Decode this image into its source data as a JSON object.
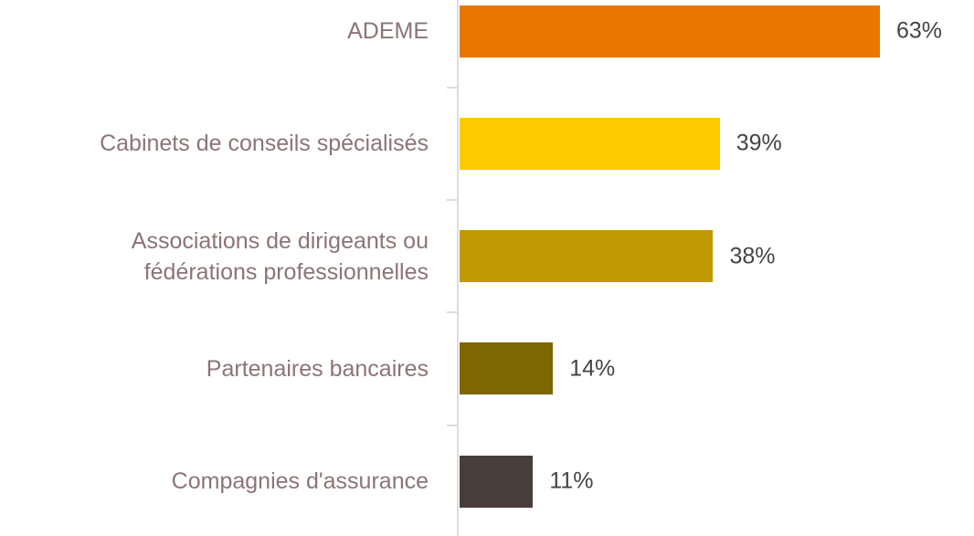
{
  "chart_data": {
    "type": "bar",
    "orientation": "horizontal",
    "categories": [
      "ADEME",
      "Cabinets de conseils spécialisés",
      "Associations de dirigeants ou fédérations professionnelles",
      "Partenaires bancaires",
      "Compagnies d'assurance"
    ],
    "values": [
      63,
      39,
      38,
      14,
      11
    ],
    "value_labels": [
      "63%",
      "39%",
      "38%",
      "14%",
      "11%"
    ],
    "colors": [
      "#ea7600",
      "#fdcb00",
      "#c09a00",
      "#7e6600",
      "#493d3b"
    ]
  }
}
